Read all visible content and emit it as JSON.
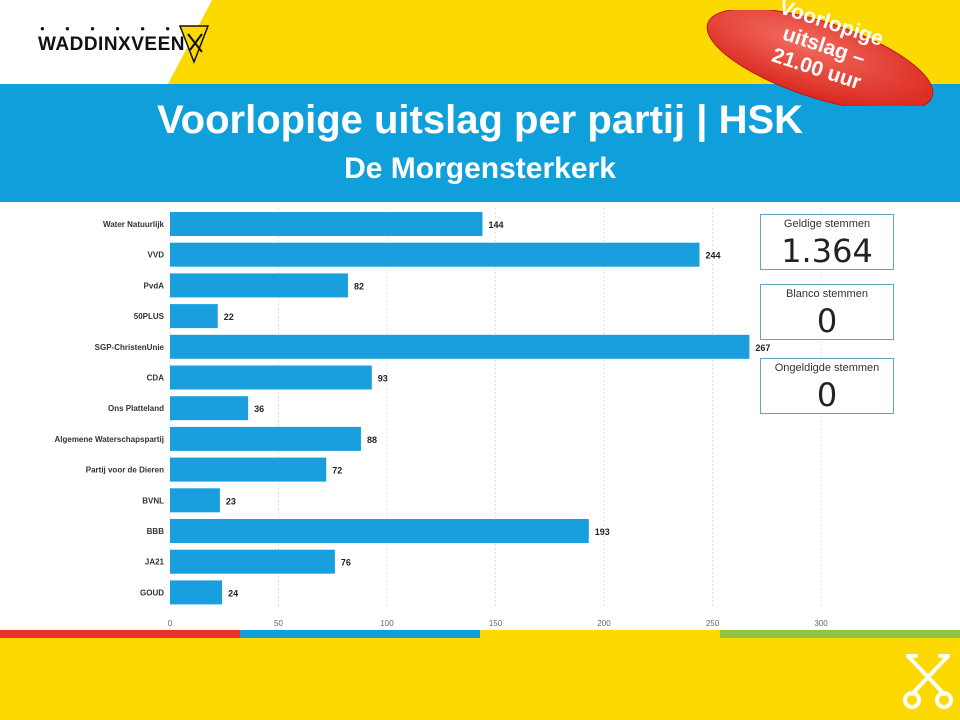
{
  "header": {
    "logo_text": "WADDINXVEEN",
    "title": "Voorlopige uitslag per partij | HSK",
    "subtitle": "De Morgensterkerk"
  },
  "badge": {
    "lines": [
      "Voorlopige",
      "uitslag –",
      "21.00 uur"
    ],
    "color": "#e8322b"
  },
  "stats": {
    "valid": {
      "label": "Geldige stemmen",
      "value": "1.364"
    },
    "blank": {
      "label": "Blanco stemmen",
      "value": "0"
    },
    "invalid": {
      "label": "Ongeldigde stemmen",
      "value": "0"
    }
  },
  "colors": {
    "yellow": "#fcd900",
    "blue": "#0fa0dc",
    "bar": "#1a9fde",
    "red": "#e8322b",
    "green": "#8cc63f"
  },
  "chart_data": {
    "type": "bar",
    "orientation": "horizontal",
    "categories": [
      "Water Natuurlijk",
      "VVD",
      "PvdA",
      "50PLUS",
      "SGP-ChristenUnie",
      "CDA",
      "Ons Platteland",
      "Algemene Waterschapspartij",
      "Partij voor de Dieren",
      "BVNL",
      "BBB",
      "JA21",
      "GOUD"
    ],
    "values": [
      144,
      244,
      82,
      22,
      267,
      93,
      36,
      88,
      72,
      23,
      193,
      76,
      24
    ],
    "x_ticks": [
      0,
      50,
      100,
      150,
      200,
      250,
      300
    ],
    "xlim": [
      0,
      330
    ],
    "grid": true
  }
}
